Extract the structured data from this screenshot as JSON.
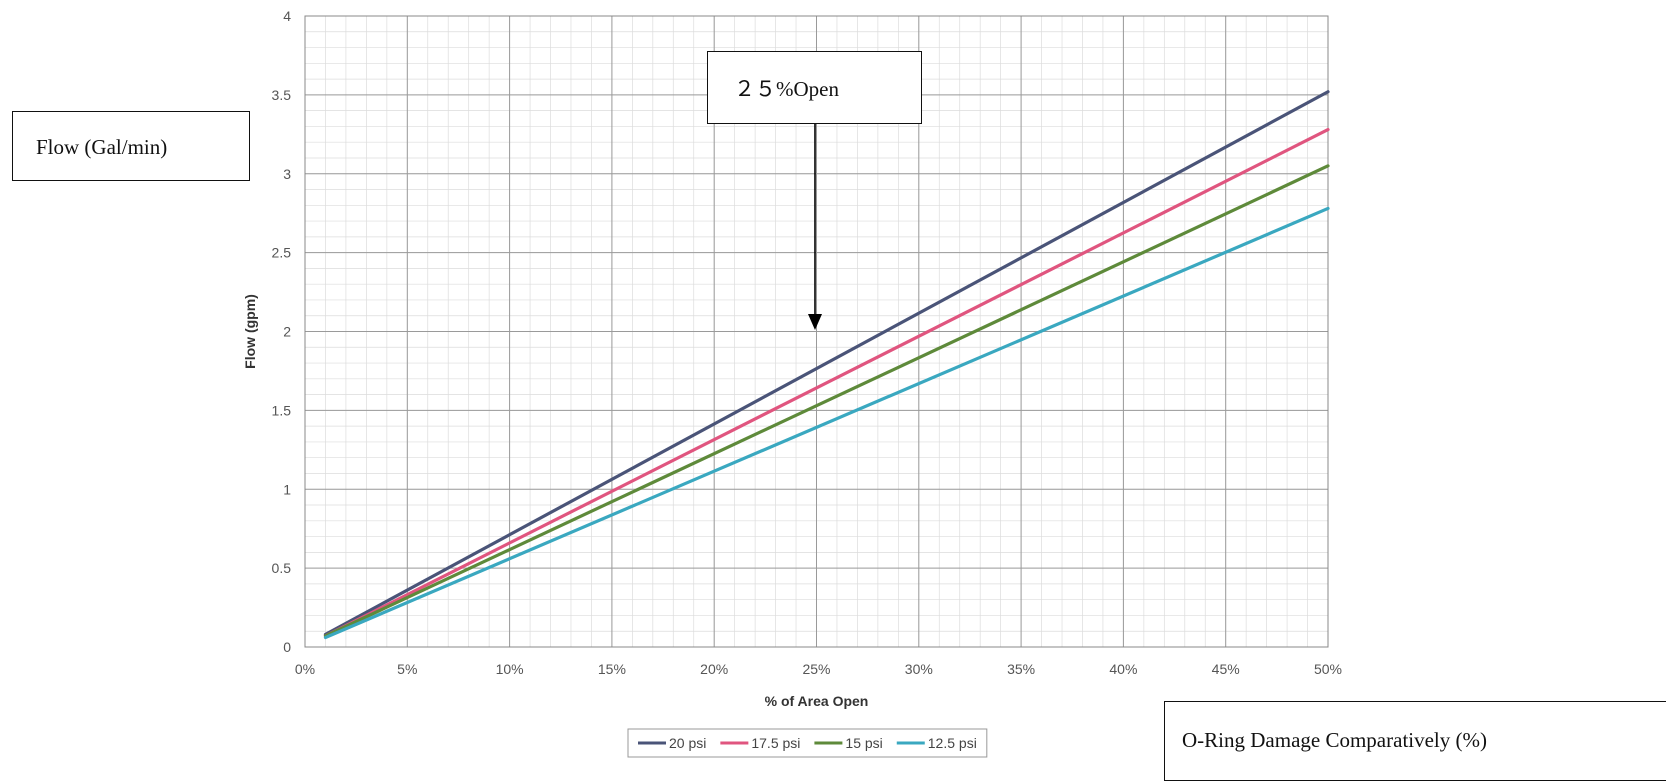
{
  "chart_data": {
    "type": "line",
    "title": "",
    "xlabel": "% of Area Open",
    "ylabel": "Flow (gpm)",
    "xlim": [
      0,
      50
    ],
    "ylim": [
      0,
      4
    ],
    "x_ticks": [
      "0%",
      "5%",
      "10%",
      "15%",
      "20%",
      "25%",
      "30%",
      "35%",
      "40%",
      "45%",
      "50%"
    ],
    "y_ticks": [
      "0",
      "0.5",
      "1",
      "1.5",
      "2",
      "2.5",
      "3",
      "3.5",
      "4"
    ],
    "grid": "major and minor",
    "legend_position": "bottom",
    "series": [
      {
        "name": "20 psi",
        "color": "#4a5478",
        "x": [
          1,
          50
        ],
        "y": [
          0.08,
          3.52
        ]
      },
      {
        "name": "17.5 psi",
        "color": "#e0557f",
        "x": [
          1,
          50
        ],
        "y": [
          0.07,
          3.28
        ]
      },
      {
        "name": "15 psi",
        "color": "#5e8a3a",
        "x": [
          1,
          50
        ],
        "y": [
          0.07,
          3.05
        ]
      },
      {
        "name": "12.5 psi",
        "color": "#3aa8c0",
        "x": [
          1,
          50
        ],
        "y": [
          0.06,
          2.78
        ]
      }
    ]
  },
  "annotations": {
    "flow_label": "Flow (Gal/min)",
    "open_label": "２５%Open",
    "oring_label": "O-Ring Damage Comparatively (%)"
  },
  "colors": {
    "grid_major": "#9a9a9a",
    "grid_minor": "#dcdcdc",
    "arrow": "#000000"
  }
}
